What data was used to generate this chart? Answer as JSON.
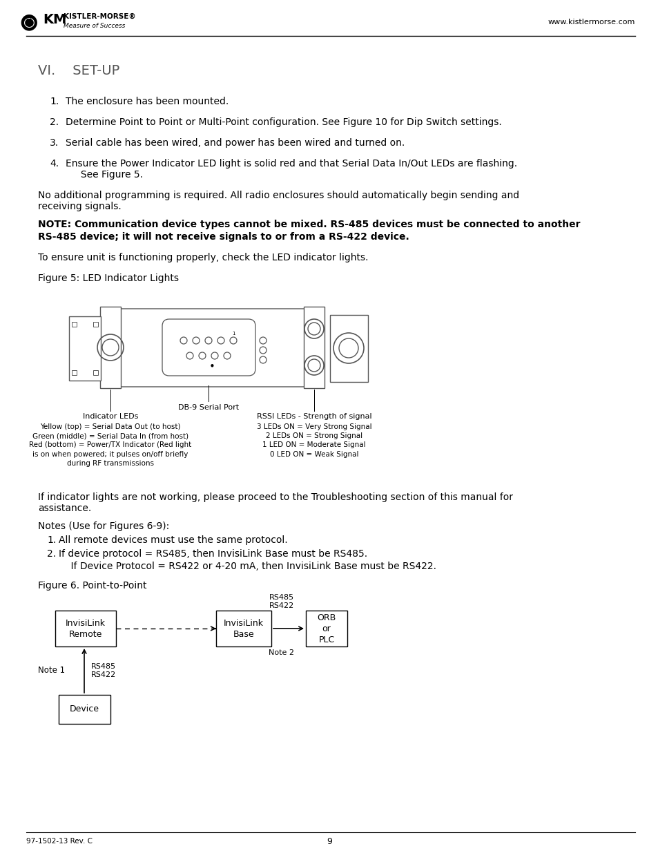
{
  "page_bg": "#ffffff",
  "website": "www.kistlermorse.com",
  "footer_left": "97-1502-13 Rev. C",
  "footer_center": "9",
  "section_title": "VI.    SET-UP",
  "numbered_items": [
    "The enclosure has been mounted.",
    "Determine Point to Point or Multi-Point configuration. See Figure 10 for Dip Switch settings.",
    "Serial cable has been wired, and power has been wired and turned on.",
    "Ensure the Power Indicator LED light is solid red and that Serial Data In/Out LEDs are flashing.\n    See Figure 5."
  ],
  "paragraph1": "No additional programming is required. All radio enclosures should automatically begin sending and\nreceiving signals.",
  "note_line1": "NOTE: Communication device types cannot be mixed. RS-485 devices must be connected to another",
  "note_line2": "RS-485 device; it will not receive signals to or from a RS-422 device.",
  "para2": "To ensure unit is functioning properly, check the LED indicator lights.",
  "fig5_title": "Figure 5: LED Indicator Lights",
  "fig5_label_db9": "DB-9 Serial Port",
  "fig5_label_indicator": "Indicator LEDs",
  "fig5_label_rssi": "RSSI LEDs - Strength of signal",
  "fig5_text_left": "Yellow (top) = Serial Data Out (to host)\nGreen (middle) = Serial Data In (from host)\nRed (bottom) = Power/TX Indicator (Red light\nis on when powered; it pulses on/off briefly\nduring RF transmissions",
  "fig5_text_right": "3 LEDs ON = Very Strong Signal\n2 LEDs ON = Strong Signal\n1 LED ON = Moderate Signal\n0 LED ON = Weak Signal",
  "para3": "If indicator lights are not working, please proceed to the Troubleshooting section of this manual for\nassistance.",
  "notes_title": "Notes (Use for Figures 6-9):",
  "note1": "All remote devices must use the same protocol.",
  "note2a": "If device protocol = RS485, then InvisiLink Base must be RS485.",
  "note2b": "    If Device Protocol = RS422 or 4-20 mA, then InvisiLink Base must be RS422.",
  "fig6_title": "Figure 6. Point-to-Point"
}
